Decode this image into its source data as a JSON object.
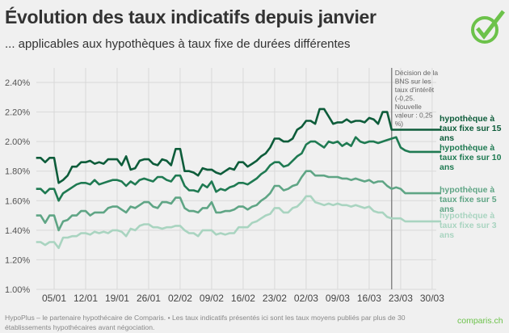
{
  "header": {
    "title": "Évolution des taux indicatifs depuis janvier",
    "subtitle": "... applicables aux hypothèques à taux fixe de durées différentes",
    "logo_icon": "checkmark-circle-icon"
  },
  "footer": {
    "note": "HypoPlus – le partenaire hypothécaire de Comparis. • Les taux indicatifs présentés ici sont les taux moyens publiés par plus de 30 établissements hypothécaires avant négociation.",
    "brand": "comparis.ch"
  },
  "colors": {
    "background": "#f0f0f0",
    "grid": "#d9d9d9",
    "logo": "#6cc24a",
    "s15": "#0d5c3a",
    "s10": "#1f7a52",
    "s5": "#5fa585",
    "s3": "#a9d4c0"
  },
  "chart_data": {
    "type": "line",
    "title": "Évolution des taux indicatifs depuis janvier",
    "subtitle": "... applicables aux hypothèques à taux fixe de durées différentes",
    "xlabel": "",
    "ylabel": "",
    "ylim": [
      1.0,
      2.4
    ],
    "y_ticks": [
      "1.00%",
      "1.20%",
      "1.40%",
      "1.60%",
      "1.80%",
      "2.00%",
      "2.20%",
      "2.40%"
    ],
    "y_tick_values": [
      1.0,
      1.2,
      1.4,
      1.6,
      1.8,
      2.0,
      2.2,
      2.4
    ],
    "x_range_days": [
      0,
      90
    ],
    "x_ticks": [
      {
        "label": "05/01",
        "day": 4
      },
      {
        "label": "12/01",
        "day": 11
      },
      {
        "label": "19/01",
        "day": 18
      },
      {
        "label": "26/01",
        "day": 25
      },
      {
        "label": "02/02",
        "day": 32
      },
      {
        "label": "09/02",
        "day": 39
      },
      {
        "label": "16/02",
        "day": 46
      },
      {
        "label": "23/02",
        "day": 53
      },
      {
        "label": "02/03",
        "day": 60
      },
      {
        "label": "09/03",
        "day": 67
      },
      {
        "label": "16/03",
        "day": 74
      },
      {
        "label": "23/03",
        "day": 81
      },
      {
        "label": "30/03",
        "day": 88
      }
    ],
    "grid": true,
    "legend": "right, inline labels at line ends",
    "annotation": {
      "day": 79,
      "text": [
        "Décision de la",
        "BNS sur les",
        "taux d'intérêt",
        "(-0,25.",
        "Nouvelle",
        "valeur : 0,25",
        "%)"
      ]
    },
    "series": [
      {
        "name": "hypothèque à taux fixe sur 15 ans",
        "label_lines": [
          "hypothèque à",
          "taux fixe sur 15",
          "ans"
        ],
        "color_key": "s15",
        "x": [
          0,
          1,
          2,
          3,
          4,
          5,
          6,
          7,
          8,
          9,
          10,
          11,
          12,
          13,
          14,
          15,
          16,
          17,
          18,
          19,
          20,
          21,
          22,
          23,
          24,
          25,
          26,
          27,
          28,
          29,
          30,
          31,
          32,
          33,
          34,
          35,
          36,
          37,
          38,
          39,
          40,
          41,
          42,
          43,
          44,
          45,
          46,
          47,
          48,
          49,
          50,
          51,
          52,
          53,
          54,
          55,
          56,
          57,
          58,
          59,
          60,
          61,
          62,
          63,
          64,
          65,
          66,
          67,
          68,
          69,
          70,
          71,
          72,
          73,
          74,
          75,
          76,
          77,
          78,
          79,
          80,
          81,
          82,
          83,
          84,
          85,
          86,
          87,
          88,
          89,
          90
        ],
        "values": [
          1.89,
          1.89,
          1.86,
          1.89,
          1.89,
          1.72,
          1.74,
          1.77,
          1.83,
          1.83,
          1.86,
          1.86,
          1.87,
          1.85,
          1.86,
          1.85,
          1.88,
          1.88,
          1.88,
          1.84,
          1.9,
          1.81,
          1.82,
          1.87,
          1.88,
          1.88,
          1.85,
          1.84,
          1.88,
          1.87,
          1.84,
          1.95,
          1.95,
          1.8,
          1.8,
          1.79,
          1.77,
          1.82,
          1.81,
          1.81,
          1.79,
          1.78,
          1.8,
          1.82,
          1.81,
          1.86,
          1.86,
          1.83,
          1.85,
          1.87,
          1.9,
          1.92,
          1.96,
          2.02,
          2.02,
          2.0,
          2.0,
          2.02,
          2.08,
          2.1,
          2.14,
          2.14,
          2.12,
          2.22,
          2.22,
          2.17,
          2.12,
          2.13,
          2.13,
          2.15,
          2.13,
          2.14,
          2.14,
          2.13,
          2.16,
          2.15,
          2.12,
          2.2,
          2.2,
          2.08,
          2.08,
          2.08,
          2.08,
          2.08,
          2.08,
          2.08,
          2.08,
          2.08,
          2.08,
          2.08,
          2.08
        ]
      },
      {
        "name": "hypothèque à taux fixe sur 10 ans",
        "label_lines": [
          "hypothèque à",
          "taux fixe sur 10",
          "ans"
        ],
        "color_key": "s10",
        "x": [
          0,
          1,
          2,
          3,
          4,
          5,
          6,
          7,
          8,
          9,
          10,
          11,
          12,
          13,
          14,
          15,
          16,
          17,
          18,
          19,
          20,
          21,
          22,
          23,
          24,
          25,
          26,
          27,
          28,
          29,
          30,
          31,
          32,
          33,
          34,
          35,
          36,
          37,
          38,
          39,
          40,
          41,
          42,
          43,
          44,
          45,
          46,
          47,
          48,
          49,
          50,
          51,
          52,
          53,
          54,
          55,
          56,
          57,
          58,
          59,
          60,
          61,
          62,
          63,
          64,
          65,
          66,
          67,
          68,
          69,
          70,
          71,
          72,
          73,
          74,
          75,
          76,
          77,
          78,
          79,
          80,
          81,
          82,
          83,
          84,
          85,
          86,
          87,
          88,
          89,
          90
        ],
        "values": [
          1.68,
          1.68,
          1.65,
          1.68,
          1.68,
          1.6,
          1.65,
          1.67,
          1.69,
          1.71,
          1.72,
          1.72,
          1.71,
          1.74,
          1.71,
          1.72,
          1.73,
          1.74,
          1.74,
          1.73,
          1.7,
          1.73,
          1.71,
          1.74,
          1.75,
          1.74,
          1.73,
          1.76,
          1.76,
          1.74,
          1.73,
          1.77,
          1.77,
          1.7,
          1.67,
          1.67,
          1.66,
          1.71,
          1.69,
          1.73,
          1.66,
          1.68,
          1.67,
          1.69,
          1.7,
          1.72,
          1.72,
          1.71,
          1.73,
          1.75,
          1.78,
          1.8,
          1.84,
          1.86,
          1.86,
          1.83,
          1.84,
          1.87,
          1.9,
          1.92,
          1.98,
          2.0,
          2.0,
          1.98,
          1.96,
          2.0,
          1.99,
          2.0,
          1.97,
          1.99,
          1.97,
          2.03,
          2.0,
          1.99,
          2.0,
          2.0,
          1.99,
          2.0,
          2.01,
          2.02,
          2.03,
          1.96,
          1.94,
          1.93,
          1.93,
          1.93,
          1.93,
          1.93,
          1.93,
          1.93,
          1.93
        ]
      },
      {
        "name": "hypothèque à taux fixe sur 5 ans",
        "label_lines": [
          "hypothèque à",
          "taux fixe sur 5",
          "ans"
        ],
        "color_key": "s5",
        "x": [
          0,
          1,
          2,
          3,
          4,
          5,
          6,
          7,
          8,
          9,
          10,
          11,
          12,
          13,
          14,
          15,
          16,
          17,
          18,
          19,
          20,
          21,
          22,
          23,
          24,
          25,
          26,
          27,
          28,
          29,
          30,
          31,
          32,
          33,
          34,
          35,
          36,
          37,
          38,
          39,
          40,
          41,
          42,
          43,
          44,
          45,
          46,
          47,
          48,
          49,
          50,
          51,
          52,
          53,
          54,
          55,
          56,
          57,
          58,
          59,
          60,
          61,
          62,
          63,
          64,
          65,
          66,
          67,
          68,
          69,
          70,
          71,
          72,
          73,
          74,
          75,
          76,
          77,
          78,
          79,
          80,
          81,
          82,
          83,
          84,
          85,
          86,
          87,
          88,
          89,
          90
        ],
        "values": [
          1.5,
          1.5,
          1.45,
          1.5,
          1.5,
          1.4,
          1.46,
          1.47,
          1.5,
          1.5,
          1.53,
          1.53,
          1.5,
          1.52,
          1.52,
          1.52,
          1.55,
          1.56,
          1.56,
          1.54,
          1.52,
          1.56,
          1.55,
          1.57,
          1.59,
          1.59,
          1.56,
          1.55,
          1.59,
          1.59,
          1.58,
          1.62,
          1.62,
          1.55,
          1.53,
          1.53,
          1.52,
          1.55,
          1.55,
          1.59,
          1.52,
          1.52,
          1.53,
          1.53,
          1.54,
          1.56,
          1.56,
          1.54,
          1.56,
          1.57,
          1.6,
          1.62,
          1.65,
          1.7,
          1.7,
          1.67,
          1.68,
          1.7,
          1.71,
          1.76,
          1.8,
          1.8,
          1.77,
          1.77,
          1.77,
          1.76,
          1.76,
          1.76,
          1.75,
          1.75,
          1.74,
          1.75,
          1.74,
          1.73,
          1.74,
          1.72,
          1.73,
          1.73,
          1.7,
          1.68,
          1.69,
          1.68,
          1.65,
          1.65,
          1.65,
          1.65,
          1.65,
          1.65,
          1.65,
          1.65,
          1.65
        ]
      },
      {
        "name": "hypothèque à taux fixe sur 3 ans",
        "label_lines": [
          "hypothèque à",
          "taux fixe sur 3",
          "ans"
        ],
        "color_key": "s3",
        "x": [
          0,
          1,
          2,
          3,
          4,
          5,
          6,
          7,
          8,
          9,
          10,
          11,
          12,
          13,
          14,
          15,
          16,
          17,
          18,
          19,
          20,
          21,
          22,
          23,
          24,
          25,
          26,
          27,
          28,
          29,
          30,
          31,
          32,
          33,
          34,
          35,
          36,
          37,
          38,
          39,
          40,
          41,
          42,
          43,
          44,
          45,
          46,
          47,
          48,
          49,
          50,
          51,
          52,
          53,
          54,
          55,
          56,
          57,
          58,
          59,
          60,
          61,
          62,
          63,
          64,
          65,
          66,
          67,
          68,
          69,
          70,
          71,
          72,
          73,
          74,
          75,
          76,
          77,
          78,
          79,
          80,
          81,
          82,
          83,
          84,
          85,
          86,
          87,
          88,
          89,
          90
        ],
        "values": [
          1.32,
          1.32,
          1.3,
          1.32,
          1.32,
          1.28,
          1.35,
          1.35,
          1.36,
          1.36,
          1.38,
          1.38,
          1.37,
          1.39,
          1.38,
          1.39,
          1.38,
          1.4,
          1.4,
          1.39,
          1.36,
          1.41,
          1.4,
          1.43,
          1.44,
          1.44,
          1.42,
          1.42,
          1.41,
          1.42,
          1.42,
          1.43,
          1.43,
          1.4,
          1.38,
          1.38,
          1.36,
          1.4,
          1.4,
          1.4,
          1.37,
          1.38,
          1.37,
          1.38,
          1.38,
          1.42,
          1.42,
          1.42,
          1.45,
          1.46,
          1.48,
          1.5,
          1.51,
          1.55,
          1.55,
          1.52,
          1.52,
          1.55,
          1.56,
          1.59,
          1.63,
          1.63,
          1.59,
          1.58,
          1.57,
          1.58,
          1.57,
          1.58,
          1.57,
          1.57,
          1.56,
          1.57,
          1.56,
          1.55,
          1.56,
          1.53,
          1.52,
          1.52,
          1.49,
          1.48,
          1.48,
          1.48,
          1.46,
          1.46,
          1.46,
          1.46,
          1.46,
          1.46,
          1.46,
          1.46,
          1.46
        ]
      }
    ]
  }
}
